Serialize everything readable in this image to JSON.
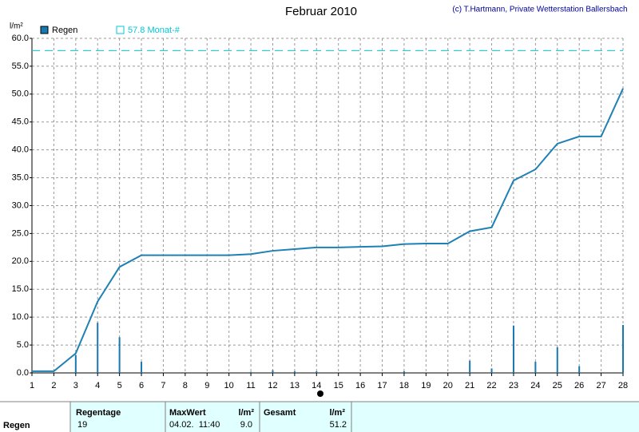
{
  "chart_data": {
    "type": "bar",
    "title": "Februar 2010",
    "credit": "(c) T.Hartmann, Private Wetterstation Ballersbach",
    "y_label": "l/m²",
    "x": [
      1,
      2,
      3,
      4,
      5,
      6,
      7,
      8,
      9,
      10,
      11,
      12,
      13,
      14,
      15,
      16,
      17,
      18,
      19,
      20,
      21,
      22,
      23,
      24,
      25,
      26,
      27,
      28
    ],
    "xlim": [
      1,
      28
    ],
    "xticks": [
      1,
      2,
      3,
      4,
      5,
      6,
      7,
      8,
      9,
      10,
      11,
      12,
      13,
      14,
      15,
      16,
      17,
      18,
      19,
      20,
      21,
      22,
      23,
      24,
      25,
      26,
      27,
      28
    ],
    "ylim": [
      0,
      60
    ],
    "yticks": [
      {
        "value": 0,
        "label": "0.0"
      },
      {
        "value": 5,
        "label": "5.0"
      },
      {
        "value": 10,
        "label": "10.0"
      },
      {
        "value": 15,
        "label": "15.0"
      },
      {
        "value": 20,
        "label": "20.0"
      },
      {
        "value": 25,
        "label": "25.0"
      },
      {
        "value": 30,
        "label": "30.0"
      },
      {
        "value": 35,
        "label": "35.0"
      },
      {
        "value": 40,
        "label": "40.0"
      },
      {
        "value": 45,
        "label": "45.0"
      },
      {
        "value": 50,
        "label": "50.0"
      },
      {
        "value": 55,
        "label": "55.0"
      },
      {
        "value": 60,
        "label": "60.0"
      }
    ],
    "grid": true,
    "series": [
      {
        "name": "Regen",
        "color": "#1878b0",
        "values": [
          0,
          0,
          3.2,
          9.0,
          6.4,
          2.0,
          0,
          0,
          0,
          0,
          0.2,
          0.5,
          0.3,
          0.3,
          0,
          0,
          0,
          0.3,
          0,
          0,
          2.2,
          0.8,
          8.5,
          2.0,
          4.6,
          1.2,
          0,
          8.6
        ]
      }
    ],
    "cumulative": {
      "color": "#1e80b4",
      "values": [
        0.3,
        0.3,
        3.5,
        12.8,
        19.0,
        21.1,
        21.1,
        21.1,
        21.1,
        21.1,
        21.3,
        21.9,
        22.2,
        22.5,
        22.5,
        22.6,
        22.7,
        23.1,
        23.2,
        23.2,
        25.4,
        26.1,
        34.5,
        36.5,
        41.1,
        42.4,
        42.4,
        51.0
      ]
    },
    "reference": {
      "value": 57.8,
      "label": "57.8 Monat-#",
      "color": "#00c8d8"
    }
  },
  "table": {
    "row_label": "Regen",
    "columns": [
      {
        "header": "Regentage",
        "value": "19"
      },
      {
        "header": "MaxWert",
        "unit": "l/m²",
        "value": "04.02.  11:40",
        "amount": "9.0"
      },
      {
        "header": "Gesamt",
        "unit": "l/m²",
        "amount": "51.2"
      }
    ]
  }
}
